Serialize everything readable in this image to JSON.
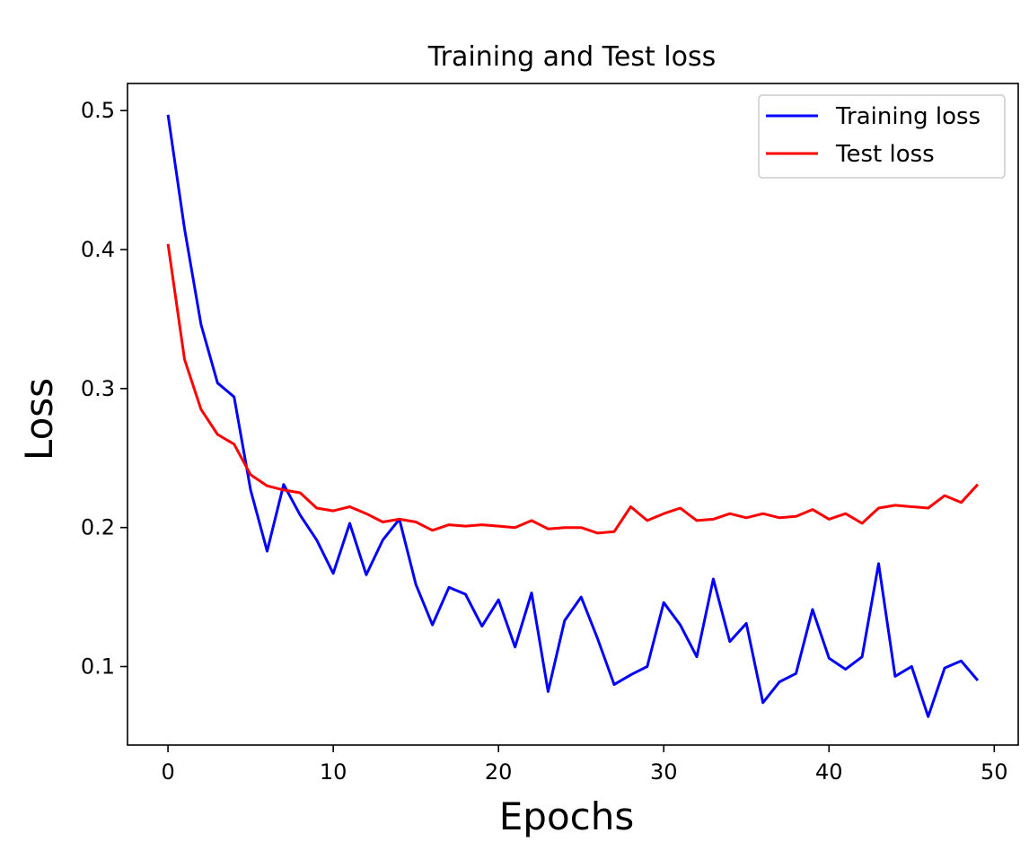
{
  "chart_data": {
    "type": "line",
    "title": "Training and Test loss",
    "xlabel": "Epochs",
    "ylabel": "Loss",
    "xlim": [
      -2.45,
      51.45
    ],
    "ylim": [
      0.0435,
      0.5195
    ],
    "xticks": [
      0,
      10,
      20,
      30,
      40,
      50
    ],
    "yticks": [
      0.1,
      0.2,
      0.3,
      0.4,
      0.5
    ],
    "xtick_labels": [
      "0",
      "10",
      "20",
      "30",
      "40",
      "50"
    ],
    "ytick_labels": [
      "0.1",
      "0.2",
      "0.3",
      "0.4",
      "0.5"
    ],
    "grid": false,
    "legend_position": "top-right",
    "x": [
      0,
      1,
      2,
      3,
      4,
      5,
      6,
      7,
      8,
      9,
      10,
      11,
      12,
      13,
      14,
      15,
      16,
      17,
      18,
      19,
      20,
      21,
      22,
      23,
      24,
      25,
      26,
      27,
      28,
      29,
      30,
      31,
      32,
      33,
      34,
      35,
      36,
      37,
      38,
      39,
      40,
      41,
      42,
      43,
      44,
      45,
      46,
      47,
      48,
      49
    ],
    "series": [
      {
        "name": "Training loss",
        "color": "#0000ff",
        "values": [
          0.497,
          0.415,
          0.346,
          0.304,
          0.294,
          0.227,
          0.183,
          0.231,
          0.209,
          0.191,
          0.167,
          0.203,
          0.166,
          0.191,
          0.206,
          0.159,
          0.13,
          0.157,
          0.152,
          0.129,
          0.148,
          0.114,
          0.153,
          0.082,
          0.133,
          0.15,
          0.12,
          0.087,
          0.094,
          0.1,
          0.146,
          0.13,
          0.107,
          0.163,
          0.118,
          0.131,
          0.074,
          0.089,
          0.095,
          0.141,
          0.106,
          0.098,
          0.107,
          0.174,
          0.093,
          0.1,
          0.064,
          0.099,
          0.104,
          0.09
        ]
      },
      {
        "name": "Test loss",
        "color": "#ff0000",
        "values": [
          0.404,
          0.321,
          0.285,
          0.267,
          0.26,
          0.238,
          0.23,
          0.227,
          0.225,
          0.214,
          0.212,
          0.215,
          0.21,
          0.204,
          0.206,
          0.204,
          0.198,
          0.202,
          0.201,
          0.202,
          0.201,
          0.2,
          0.205,
          0.199,
          0.2,
          0.2,
          0.196,
          0.197,
          0.215,
          0.205,
          0.21,
          0.214,
          0.205,
          0.206,
          0.21,
          0.207,
          0.21,
          0.207,
          0.208,
          0.213,
          0.206,
          0.21,
          0.203,
          0.214,
          0.216,
          0.215,
          0.214,
          0.223,
          0.218,
          0.231
        ]
      }
    ]
  }
}
